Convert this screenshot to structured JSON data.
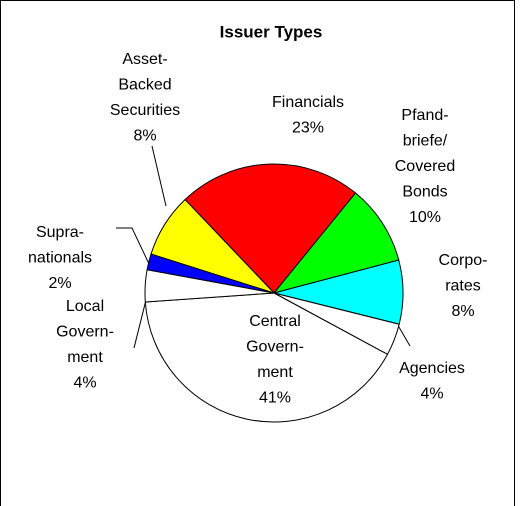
{
  "chart_data": {
    "type": "pie",
    "title": "Issuer Types",
    "categories": [
      "Financials",
      "Pfand-\nbriefe/\nCovered\nBonds",
      "Corpo-\nrates",
      "Agencies",
      "Central\nGovern-\nment",
      "Local\nGovern-\nment",
      "Supra-\nnationals",
      "Asset-\nBacked\nSecurities"
    ],
    "values": [
      23,
      10,
      8,
      4,
      41,
      4,
      2,
      8
    ],
    "value_labels": [
      "23%",
      "10%",
      "8%",
      "4%",
      "41%",
      "4%",
      "2%",
      "8%"
    ],
    "colors": [
      "#ff0000",
      "#00ff00",
      "#00ffff",
      "#ffffff",
      "#ffffff",
      "#ffffff",
      "#0000ff",
      "#ffff00"
    ]
  }
}
